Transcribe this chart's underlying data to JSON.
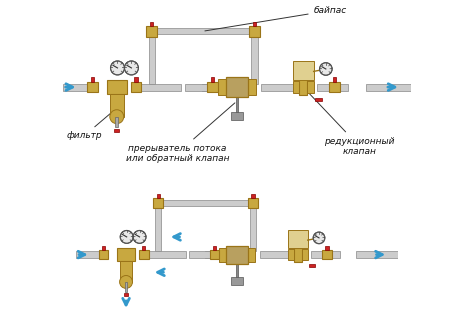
{
  "bg_color": "#ffffff",
  "label_bypass": "байпас",
  "label_filter": "фильтр",
  "label_breaker": "прерыватель потока\nили обратный клапан",
  "label_reduction": "редукционный\nклапан",
  "pipe_color": "#cccccc",
  "pipe_outline": "#888888",
  "brass_color": "#c8a840",
  "brass_dark": "#9a7418",
  "red_valve": "#cc2222",
  "arrow_color": "#3399cc",
  "gauge_color": "#e8e8e8",
  "text_color": "#111111"
}
